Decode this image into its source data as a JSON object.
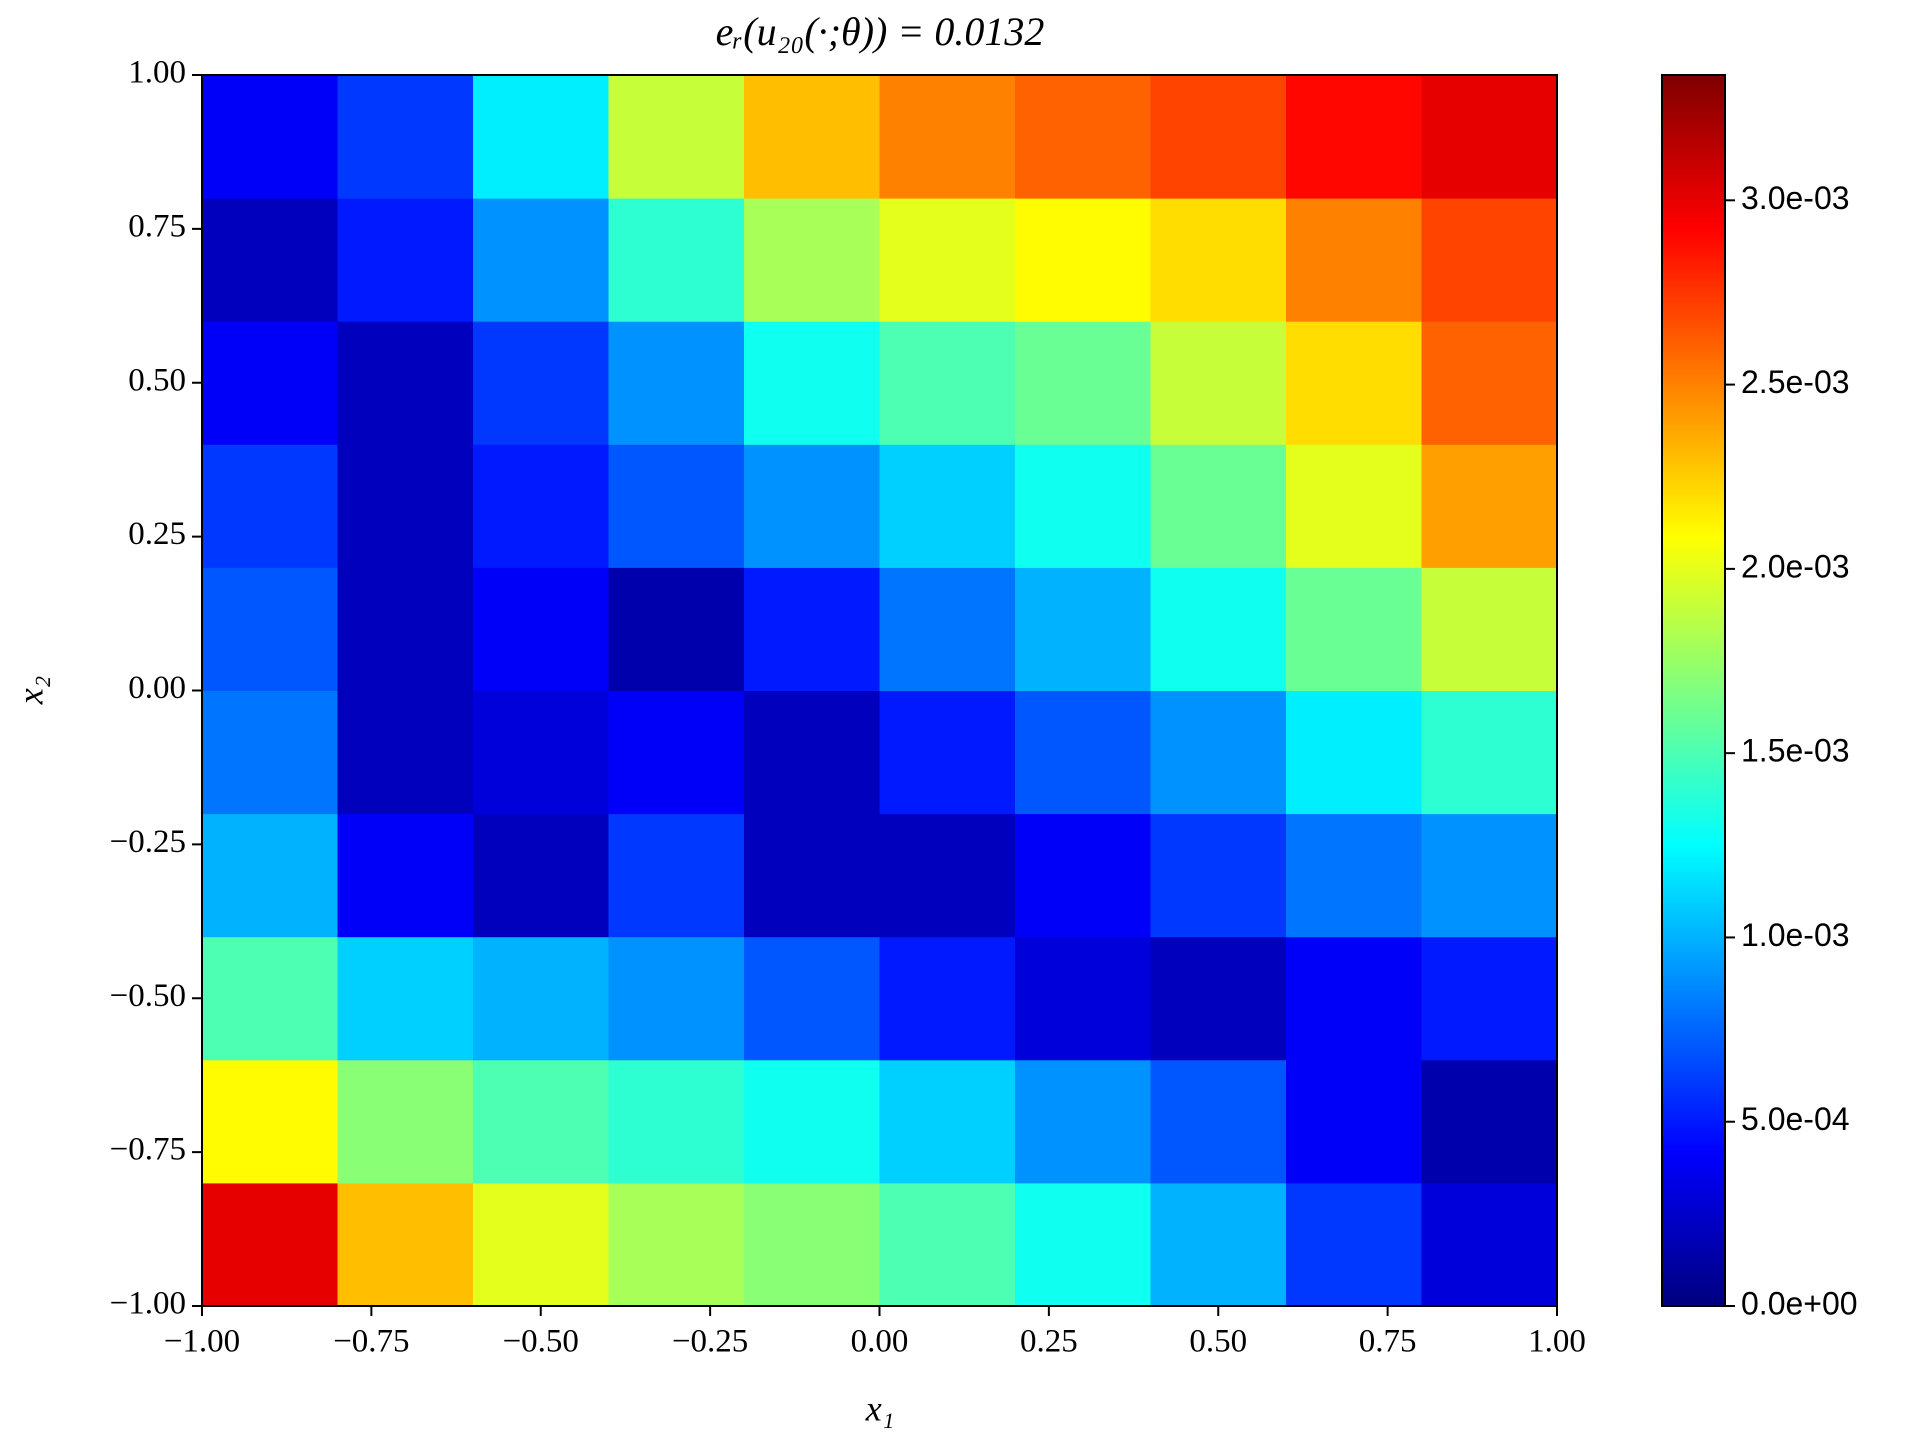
{
  "chart_data": {
    "type": "heatmap",
    "title": "eᵣ(u₂₀(·;θ)) = 0.0132",
    "xlabel": "x₁",
    "ylabel": "x₂",
    "colormap": "jet",
    "x": [
      -0.9,
      -0.7,
      -0.5,
      -0.3,
      -0.1,
      0.1,
      0.3,
      0.5,
      0.7,
      0.9
    ],
    "y": [
      -0.9,
      -0.7,
      -0.5,
      -0.3,
      -0.1,
      0.1,
      0.3,
      0.5,
      0.7,
      0.9
    ],
    "z": [
      [
        0.003,
        0.0023,
        0.002,
        0.0018,
        0.0017,
        0.0015,
        0.0013,
        0.001,
        0.0006,
        0.0003
      ],
      [
        0.0021,
        0.0017,
        0.0015,
        0.0014,
        0.0013,
        0.0011,
        0.0009,
        0.0007,
        0.0004,
        0.00015
      ],
      [
        0.0015,
        0.0011,
        0.001,
        0.0009,
        0.0007,
        0.0005,
        0.0003,
        0.0002,
        0.0004,
        0.0005
      ],
      [
        0.001,
        0.0004,
        0.0002,
        0.0006,
        0.0002,
        0.0002,
        0.0004,
        0.0006,
        0.0008,
        0.0009
      ],
      [
        0.0008,
        0.0002,
        0.0003,
        0.0004,
        0.0002,
        0.0005,
        0.0007,
        0.0009,
        0.0012,
        0.0014
      ],
      [
        0.0007,
        0.0002,
        0.0004,
        0.00015,
        0.0005,
        0.0008,
        0.001,
        0.0013,
        0.0016,
        0.0019
      ],
      [
        0.0006,
        0.0002,
        0.0005,
        0.0007,
        0.0009,
        0.0011,
        0.0013,
        0.0016,
        0.002,
        0.0024
      ],
      [
        0.0004,
        0.0002,
        0.0006,
        0.0009,
        0.0013,
        0.0015,
        0.0016,
        0.0019,
        0.0022,
        0.0026
      ],
      [
        0.0002,
        0.0005,
        0.0009,
        0.0014,
        0.0018,
        0.002,
        0.0021,
        0.0022,
        0.0025,
        0.0027
      ],
      [
        0.0004,
        0.0006,
        0.0012,
        0.0019,
        0.0023,
        0.0025,
        0.0026,
        0.0027,
        0.0029,
        0.003
      ]
    ],
    "xlim": [
      -1,
      1
    ],
    "ylim": [
      -1,
      1
    ],
    "zlim": [
      0,
      0.00334
    ],
    "xticks": [
      {
        "value": -1,
        "label": "−1.00"
      },
      {
        "value": -0.75,
        "label": "−0.75"
      },
      {
        "value": -0.5,
        "label": "−0.50"
      },
      {
        "value": -0.25,
        "label": "−0.25"
      },
      {
        "value": 0,
        "label": "0.00"
      },
      {
        "value": 0.25,
        "label": "0.25"
      },
      {
        "value": 0.5,
        "label": "0.50"
      },
      {
        "value": 0.75,
        "label": "0.75"
      },
      {
        "value": 1,
        "label": "1.00"
      }
    ],
    "yticks": [
      {
        "value": -1,
        "label": "−1.00"
      },
      {
        "value": -0.75,
        "label": "−0.75"
      },
      {
        "value": -0.5,
        "label": "−0.50"
      },
      {
        "value": -0.25,
        "label": "−0.25"
      },
      {
        "value": 0,
        "label": "0.00"
      },
      {
        "value": 0.25,
        "label": "0.25"
      },
      {
        "value": 0.5,
        "label": "0.50"
      },
      {
        "value": 0.75,
        "label": "0.75"
      },
      {
        "value": 1,
        "label": "1.00"
      }
    ],
    "zticks": [
      {
        "value": 0,
        "label": "0.0e+00"
      },
      {
        "value": 0.0005,
        "label": "5.0e-04"
      },
      {
        "value": 0.001,
        "label": "1.0e-03"
      },
      {
        "value": 0.0015,
        "label": "1.5e-03"
      },
      {
        "value": 0.002,
        "label": "2.0e-03"
      },
      {
        "value": 0.0025,
        "label": "2.5e-03"
      },
      {
        "value": 0.003,
        "label": "3.0e-03"
      }
    ]
  }
}
